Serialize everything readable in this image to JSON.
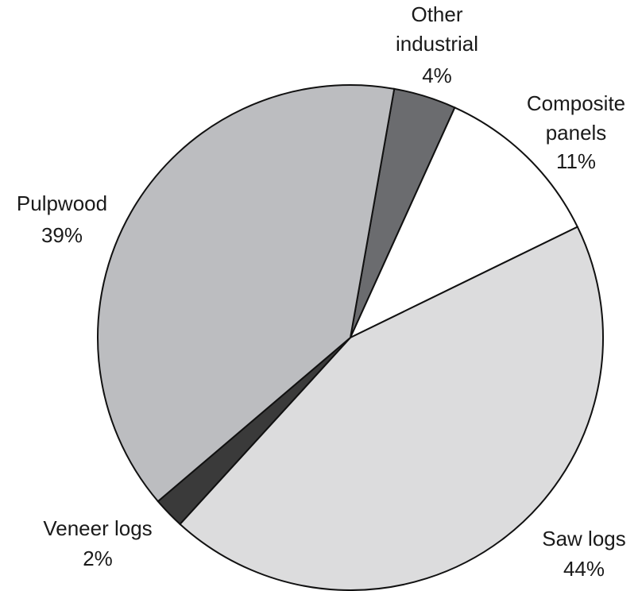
{
  "chart_data": {
    "type": "pie",
    "categories": [
      "Other industrial",
      "Composite panels",
      "Saw logs",
      "Veneer logs",
      "Pulpwood"
    ],
    "values": [
      4,
      11,
      44,
      2,
      39
    ],
    "value_labels": [
      "4%",
      "11%",
      "44%",
      "2%",
      "39%"
    ],
    "colors": [
      "#6b6c6f",
      "#ffffff",
      "#dcdcdd",
      "#3a3a3a",
      "#bcbdc0"
    ]
  }
}
